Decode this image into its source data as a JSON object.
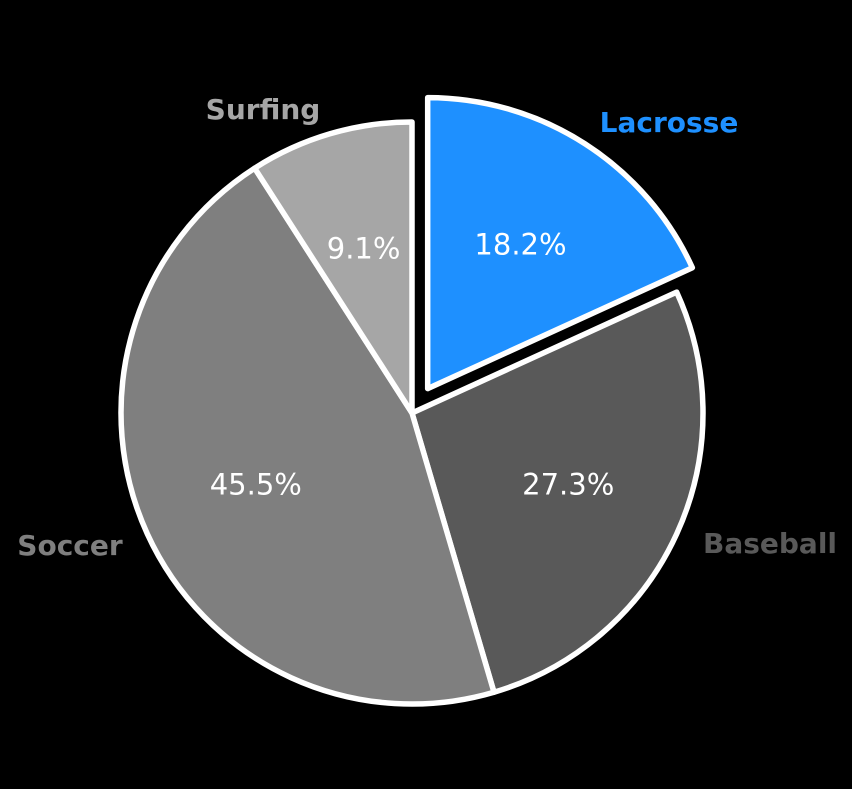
{
  "figure": {
    "background_color": "#000000",
    "title_color": "#000000"
  },
  "chart_data": {
    "type": "pie",
    "title": "",
    "start_angle_deg": 90,
    "direction": "clockwise",
    "legend_position": "none",
    "gridlines": false,
    "wedge_border_color": "#ffffff",
    "percent_text_color": "#ffffff",
    "slices": [
      {
        "label": "Lacrosse",
        "percent": 18.2,
        "percent_label": "18.2%",
        "color": "#1e90ff",
        "label_color": "#1e90ff",
        "exploded": true
      },
      {
        "label": "Baseball",
        "percent": 27.3,
        "percent_label": "27.3%",
        "color": "#595959",
        "label_color": "#595959",
        "exploded": false
      },
      {
        "label": "Soccer",
        "percent": 45.5,
        "percent_label": "45.5%",
        "color": "#7f7f7f",
        "label_color": "#7f7f7f",
        "exploded": false
      },
      {
        "label": "Surfing",
        "percent": 9.1,
        "percent_label": "9.1%",
        "color": "#a6a6a6",
        "label_color": "#a6a6a6",
        "exploded": false
      }
    ]
  }
}
